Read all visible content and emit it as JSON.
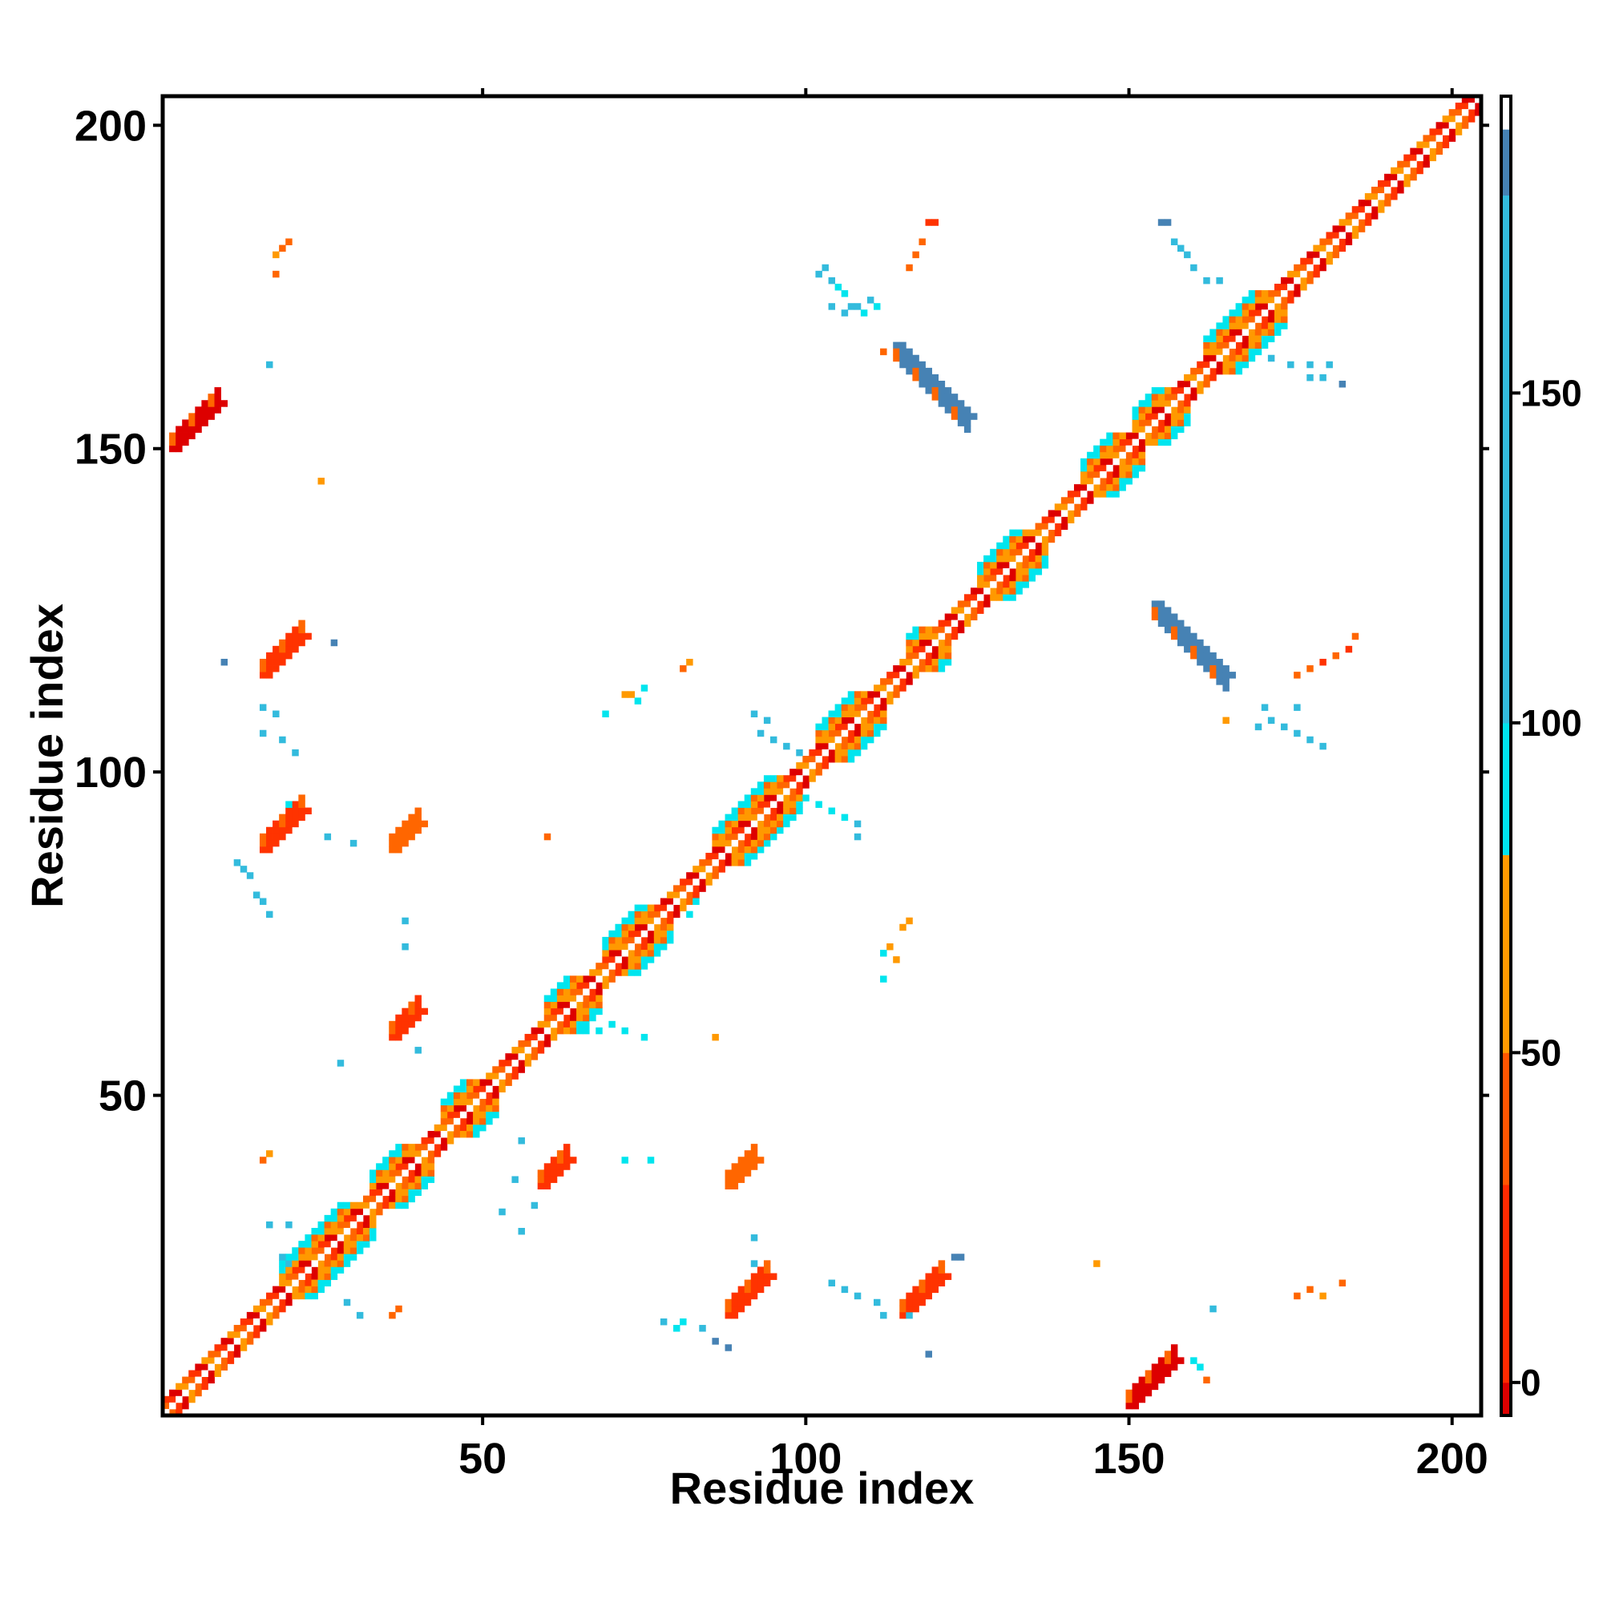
{
  "chart_data": {
    "type": "heatmap",
    "title": "",
    "xlabel": "Residue index",
    "ylabel": "Residue index",
    "xlim": [
      1,
      204
    ],
    "ylim": [
      1,
      204
    ],
    "xticks": [
      50,
      100,
      150,
      200
    ],
    "yticks": [
      50,
      100,
      150,
      200
    ],
    "grid": false,
    "colorbar": {
      "position": "right",
      "ticks": [
        0,
        50,
        100,
        150
      ],
      "range": [
        -5,
        195
      ],
      "segments": [
        {
          "from": -5,
          "to": 0,
          "color": "#dd0000"
        },
        {
          "from": 0,
          "to": 30,
          "color": "#ff2a00"
        },
        {
          "from": 30,
          "to": 50,
          "color": "#ff5500"
        },
        {
          "from": 50,
          "to": 80,
          "color": "#ff9900"
        },
        {
          "from": 80,
          "to": 100,
          "color": "#00e5ee"
        },
        {
          "from": 100,
          "to": 180,
          "color": "#33bbdd"
        },
        {
          "from": 180,
          "to": 190,
          "color": "#4682b4"
        },
        {
          "from": 190,
          "to": 195,
          "color": "#ffffff"
        }
      ]
    },
    "colors": {
      "c0": "#dd0000",
      "c1": "#ff3300",
      "c2": "#ff6600",
      "c3": "#ff9900",
      "c4": "#00e5ee",
      "c5": "#33bbdd",
      "c6": "#4682b4"
    },
    "diagonal": {
      "from": 1,
      "to": 204,
      "near_width": 2
    },
    "helices": [
      [
        19,
        31
      ],
      [
        33,
        40
      ],
      [
        44,
        50
      ],
      [
        60,
        66
      ],
      [
        69,
        77
      ],
      [
        86,
        97
      ],
      [
        102,
        110
      ],
      [
        116,
        120
      ],
      [
        127,
        135
      ],
      [
        143,
        150
      ],
      [
        151,
        157
      ],
      [
        162,
        172
      ]
    ],
    "strands": [
      {
        "x0": 2,
        "y0": 150,
        "len": 8,
        "dx": 1,
        "dy": 1,
        "color": "c0",
        "w": 2
      },
      {
        "x0": 16,
        "y0": 115,
        "len": 7,
        "dx": 1,
        "dy": 1,
        "color": "c1",
        "w": 2
      },
      {
        "x0": 16,
        "y0": 88,
        "len": 7,
        "dx": 1,
        "dy": 1,
        "color": "c1",
        "w": 2
      },
      {
        "x0": 36,
        "y0": 88,
        "len": 5,
        "dx": 1,
        "dy": 1,
        "color": "c2",
        "w": 2
      },
      {
        "x0": 36,
        "y0": 59,
        "len": 5,
        "dx": 1,
        "dy": 1,
        "color": "c1",
        "w": 2
      },
      {
        "x0": 59,
        "y0": 36,
        "len": 5,
        "dx": 1,
        "dy": 1,
        "color": "c1",
        "w": 2
      },
      {
        "x0": 88,
        "y0": 36,
        "len": 5,
        "dx": 1,
        "dy": 1,
        "color": "c2",
        "w": 2
      },
      {
        "x0": 88,
        "y0": 16,
        "len": 7,
        "dx": 1,
        "dy": 1,
        "color": "c1",
        "w": 2
      },
      {
        "x0": 115,
        "y0": 16,
        "len": 7,
        "dx": 1,
        "dy": 1,
        "color": "c1",
        "w": 2
      },
      {
        "x0": 150,
        "y0": 2,
        "len": 8,
        "dx": 1,
        "dy": 1,
        "color": "c0",
        "w": 2
      },
      {
        "x0": 114,
        "y0": 166,
        "len": 12,
        "dx": 1,
        "dy": -1,
        "color": "c6",
        "w": 2
      },
      {
        "x0": 154,
        "y0": 126,
        "len": 12,
        "dx": 1,
        "dy": -1,
        "color": "c6",
        "w": 2
      }
    ],
    "points": [
      [
        102,
        177,
        "c5"
      ],
      [
        103,
        178,
        "c5"
      ],
      [
        104,
        176,
        "c5"
      ],
      [
        105,
        175,
        "c4"
      ],
      [
        106,
        174,
        "c4"
      ],
      [
        107,
        172,
        "c5"
      ],
      [
        108,
        172,
        "c5"
      ],
      [
        109,
        171,
        "c4"
      ],
      [
        110,
        173,
        "c5"
      ],
      [
        111,
        172,
        "c4"
      ],
      [
        104,
        172,
        "c5"
      ],
      [
        106,
        171,
        "c5"
      ],
      [
        119,
        185,
        "c1"
      ],
      [
        120,
        185,
        "c1"
      ],
      [
        118,
        182,
        "c2"
      ],
      [
        117,
        180,
        "c2"
      ],
      [
        116,
        178,
        "c2"
      ],
      [
        112,
        165,
        "c2"
      ],
      [
        155,
        185,
        "c6"
      ],
      [
        156,
        185,
        "c6"
      ],
      [
        157,
        182,
        "c5"
      ],
      [
        158,
        181,
        "c5"
      ],
      [
        159,
        180,
        "c5"
      ],
      [
        160,
        178,
        "c5"
      ],
      [
        162,
        176,
        "c5"
      ],
      [
        164,
        176,
        "c5"
      ],
      [
        172,
        164,
        "c5"
      ],
      [
        175,
        163,
        "c5"
      ],
      [
        178,
        163,
        "c5"
      ],
      [
        181,
        163,
        "c5"
      ],
      [
        178,
        161,
        "c5"
      ],
      [
        180,
        161,
        "c5"
      ],
      [
        183,
        160,
        "c6"
      ],
      [
        18,
        180,
        "c3"
      ],
      [
        19,
        181,
        "c2"
      ],
      [
        20,
        182,
        "c2"
      ],
      [
        18,
        177,
        "c2"
      ],
      [
        17,
        163,
        "c5"
      ],
      [
        25,
        145,
        "c3"
      ],
      [
        27,
        120,
        "c6"
      ],
      [
        10,
        117,
        "c6"
      ],
      [
        16,
        110,
        "c5"
      ],
      [
        18,
        109,
        "c5"
      ],
      [
        16,
        106,
        "c5"
      ],
      [
        19,
        105,
        "c5"
      ],
      [
        21,
        103,
        "c5"
      ],
      [
        12,
        86,
        "c5"
      ],
      [
        13,
        85,
        "c5"
      ],
      [
        14,
        84,
        "c5"
      ],
      [
        15,
        81,
        "c5"
      ],
      [
        16,
        80,
        "c5"
      ],
      [
        17,
        78,
        "c5"
      ],
      [
        20,
        95,
        "c4"
      ],
      [
        26,
        90,
        "c5"
      ],
      [
        30,
        89,
        "c5"
      ],
      [
        38,
        77,
        "c5"
      ],
      [
        38,
        73,
        "c5"
      ],
      [
        28,
        55,
        "c5"
      ],
      [
        40,
        57,
        "c5"
      ],
      [
        60,
        90,
        "c2"
      ],
      [
        93,
        89,
        "c2"
      ],
      [
        94,
        90,
        "c2"
      ],
      [
        95,
        91,
        "c2"
      ],
      [
        81,
        116,
        "c2"
      ],
      [
        82,
        117,
        "c3"
      ],
      [
        72,
        112,
        "c3"
      ],
      [
        73,
        112,
        "c3"
      ],
      [
        74,
        111,
        "c4"
      ],
      [
        75,
        113,
        "c4"
      ],
      [
        69,
        109,
        "c4"
      ],
      [
        92,
        109,
        "c5"
      ],
      [
        94,
        108,
        "c5"
      ],
      [
        93,
        106,
        "c5"
      ],
      [
        95,
        105,
        "c5"
      ],
      [
        97,
        104,
        "c5"
      ],
      [
        99,
        103,
        "c5"
      ],
      [
        100,
        96,
        "c4"
      ],
      [
        102,
        95,
        "c4"
      ],
      [
        104,
        94,
        "c4"
      ],
      [
        106,
        93,
        "c4"
      ],
      [
        108,
        92,
        "c5"
      ],
      [
        108,
        90,
        "c5"
      ],
      [
        115,
        76,
        "c3"
      ],
      [
        116,
        77,
        "c3"
      ],
      [
        113,
        73,
        "c3"
      ],
      [
        112,
        72,
        "c4"
      ],
      [
        114,
        71,
        "c3"
      ],
      [
        112,
        68,
        "c4"
      ],
      [
        80,
        80,
        "c4"
      ],
      [
        82,
        78,
        "c4"
      ],
      [
        83,
        80,
        "c4"
      ],
      [
        70,
        61,
        "c4"
      ],
      [
        72,
        60,
        "c4"
      ],
      [
        75,
        59,
        "c4"
      ],
      [
        68,
        60,
        "c4"
      ],
      [
        66,
        60,
        "c4"
      ],
      [
        86,
        59,
        "c3"
      ],
      [
        56,
        43,
        "c5"
      ],
      [
        72,
        40,
        "c4"
      ],
      [
        76,
        40,
        "c4"
      ],
      [
        55,
        37,
        "c5"
      ],
      [
        53,
        32,
        "c5"
      ],
      [
        58,
        33,
        "c5"
      ],
      [
        56,
        29,
        "c5"
      ],
      [
        17,
        30,
        "c5"
      ],
      [
        20,
        30,
        "c5"
      ],
      [
        19,
        25,
        "c5"
      ],
      [
        20,
        24,
        "c5"
      ],
      [
        29,
        18,
        "c5"
      ],
      [
        31,
        16,
        "c5"
      ],
      [
        36,
        16,
        "c2"
      ],
      [
        37,
        17,
        "c2"
      ],
      [
        16,
        40,
        "c2"
      ],
      [
        17,
        41,
        "c3"
      ],
      [
        78,
        15,
        "c5"
      ],
      [
        80,
        14,
        "c4"
      ],
      [
        81,
        15,
        "c4"
      ],
      [
        84,
        14,
        "c5"
      ],
      [
        86,
        12,
        "c6"
      ],
      [
        88,
        11,
        "c6"
      ],
      [
        92,
        24,
        "c5"
      ],
      [
        92,
        28,
        "c5"
      ],
      [
        104,
        21,
        "c5"
      ],
      [
        106,
        20,
        "c5"
      ],
      [
        108,
        19,
        "c5"
      ],
      [
        111,
        18,
        "c5"
      ],
      [
        112,
        16,
        "c5"
      ],
      [
        116,
        16,
        "c5"
      ],
      [
        119,
        10,
        "c6"
      ],
      [
        123,
        25,
        "c6"
      ],
      [
        124,
        25,
        "c6"
      ],
      [
        145,
        24,
        "c3"
      ],
      [
        163,
        17,
        "c5"
      ],
      [
        176,
        19,
        "c2"
      ],
      [
        178,
        20,
        "c2"
      ],
      [
        180,
        19,
        "c3"
      ],
      [
        183,
        21,
        "c2"
      ],
      [
        161,
        8,
        "c4"
      ],
      [
        160,
        9,
        "c4"
      ],
      [
        162,
        6,
        "c2"
      ],
      [
        176,
        115,
        "c2"
      ],
      [
        178,
        116,
        "c2"
      ],
      [
        180,
        117,
        "c1"
      ],
      [
        182,
        118,
        "c2"
      ],
      [
        184,
        119,
        "c1"
      ],
      [
        185,
        121,
        "c2"
      ],
      [
        171,
        110,
        "c5"
      ],
      [
        172,
        108,
        "c5"
      ],
      [
        174,
        107,
        "c5"
      ],
      [
        176,
        106,
        "c5"
      ],
      [
        178,
        105,
        "c5"
      ],
      [
        180,
        104,
        "c5"
      ],
      [
        170,
        107,
        "c5"
      ],
      [
        176,
        110,
        "c5"
      ],
      [
        165,
        108,
        "c3"
      ]
    ]
  }
}
